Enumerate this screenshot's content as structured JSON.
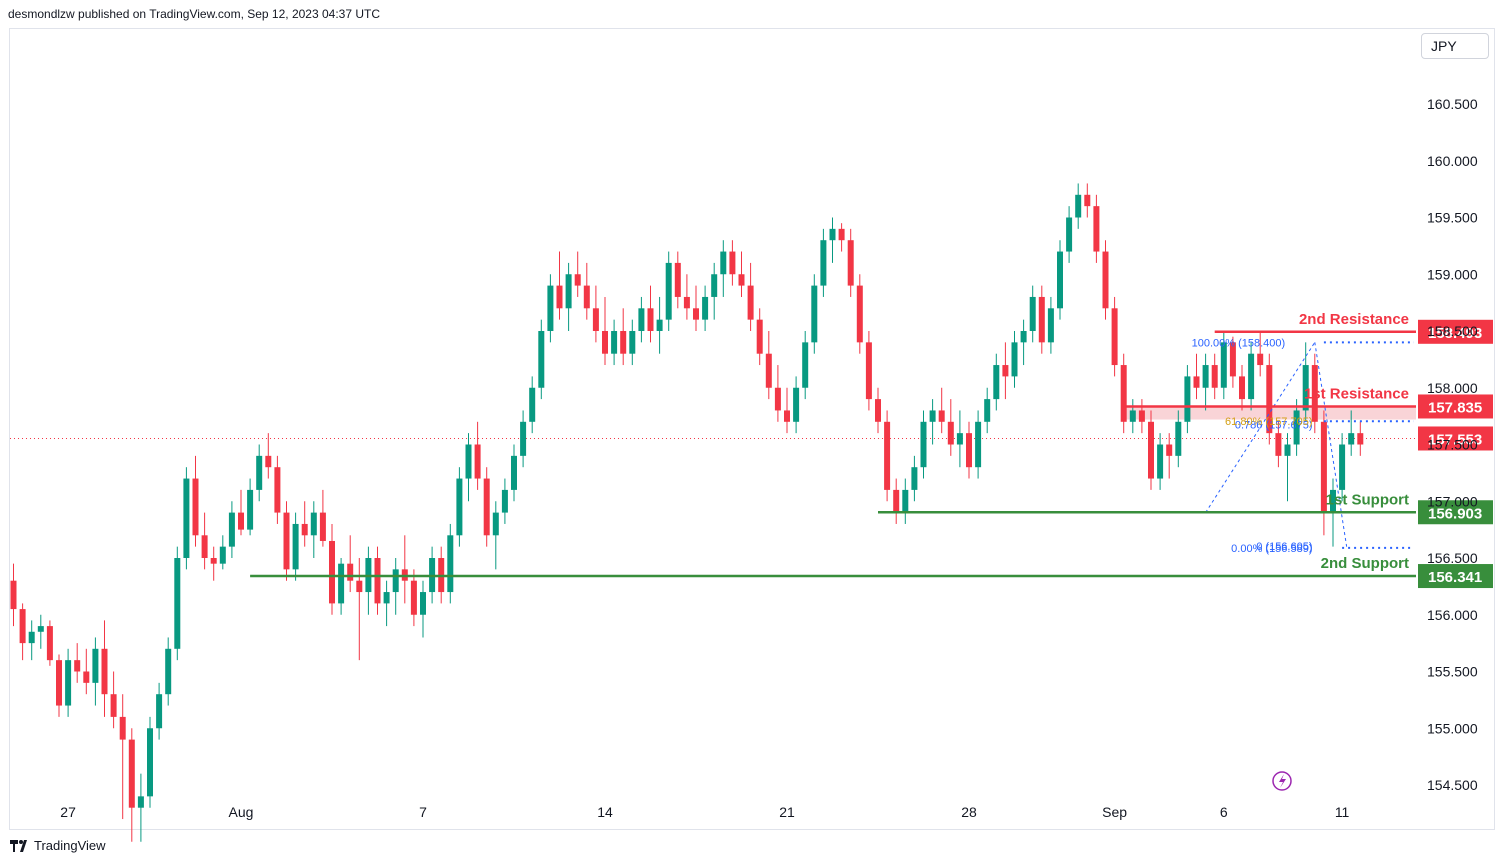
{
  "header": {
    "publisher_line": "desmondlzw published on TradingView.com, Sep 12, 2023 04:37 UTC"
  },
  "currency_button": {
    "label": "JPY"
  },
  "footer": {
    "brand": "TradingView"
  },
  "colors": {
    "up": "#089981",
    "down": "#f23645",
    "resistance": "#f23645",
    "support": "#388e3c",
    "fib": "#2962ff",
    "fib_gold": "#d4a017",
    "price_line": "#f23645"
  },
  "chart_data": {
    "type": "candlestick",
    "title": "",
    "ylim": [
      154.3,
      160.9
    ],
    "y_ticks": [
      160.5,
      160.0,
      159.5,
      159.0,
      158.5,
      158.0,
      157.5,
      157.0,
      156.5,
      156.0,
      155.5,
      155.0,
      154.5
    ],
    "x_ticks": [
      {
        "label": "27",
        "index": 6
      },
      {
        "label": "Aug",
        "index": 25
      },
      {
        "label": "7",
        "index": 45
      },
      {
        "label": "14",
        "index": 65
      },
      {
        "label": "21",
        "index": 85
      },
      {
        "label": "28",
        "index": 105
      },
      {
        "label": "Sep",
        "index": 121
      },
      {
        "label": "6",
        "index": 133
      },
      {
        "label": "11",
        "index": 146
      }
    ],
    "levels": [
      {
        "name": "2nd Resistance",
        "value": 158.493,
        "kind": "resistance",
        "from_index": 132
      },
      {
        "name": "1st Resistance",
        "value": 157.835,
        "kind": "resistance",
        "from_index": 122
      },
      {
        "name": "1st Support",
        "value": 156.903,
        "kind": "support",
        "from_index": 95
      },
      {
        "name": "2nd Support",
        "value": 156.341,
        "kind": "support",
        "from_index": 26
      }
    ],
    "current_price": 157.553,
    "zone": {
      "from": 157.835,
      "to": 157.72
    },
    "fib_labels": [
      {
        "text": "100.00% (158.400)",
        "value": 158.4,
        "index": 137,
        "color": "fib"
      },
      {
        "text": "0.786 (157.675)",
        "value": 157.675,
        "index": 140,
        "color": "fib"
      },
      {
        "text": "61.80% (157.705)",
        "value": 157.705,
        "index": 140,
        "color": "fib_gold"
      },
      {
        "text": "0 (156.605)",
        "value": 156.605,
        "index": 140,
        "color": "fib"
      },
      {
        "text": "0.00% (156.589)",
        "value": 156.589,
        "index": 140,
        "color": "fib"
      }
    ],
    "candles": [
      [
        156.3,
        156.45,
        155.9,
        156.05
      ],
      [
        156.05,
        156.1,
        155.6,
        155.75
      ],
      [
        155.75,
        155.95,
        155.6,
        155.85
      ],
      [
        155.85,
        156.0,
        155.7,
        155.9
      ],
      [
        155.9,
        155.95,
        155.55,
        155.6
      ],
      [
        155.6,
        155.65,
        155.1,
        155.2
      ],
      [
        155.2,
        155.7,
        155.1,
        155.6
      ],
      [
        155.6,
        155.75,
        155.4,
        155.5
      ],
      [
        155.5,
        155.7,
        155.3,
        155.4
      ],
      [
        155.4,
        155.8,
        155.2,
        155.7
      ],
      [
        155.7,
        155.95,
        155.1,
        155.3
      ],
      [
        155.3,
        155.5,
        155.0,
        155.1
      ],
      [
        155.1,
        155.3,
        154.2,
        154.9
      ],
      [
        154.9,
        155.0,
        154.0,
        154.3
      ],
      [
        154.3,
        154.6,
        154.0,
        154.4
      ],
      [
        154.4,
        155.1,
        154.3,
        155.0
      ],
      [
        155.0,
        155.4,
        154.9,
        155.3
      ],
      [
        155.3,
        155.8,
        155.2,
        155.7
      ],
      [
        155.7,
        156.6,
        155.6,
        156.5
      ],
      [
        156.5,
        157.3,
        156.4,
        157.2
      ],
      [
        157.2,
        157.4,
        156.6,
        156.7
      ],
      [
        156.7,
        156.9,
        156.4,
        156.5
      ],
      [
        156.5,
        156.6,
        156.3,
        156.45
      ],
      [
        156.45,
        156.7,
        156.4,
        156.6
      ],
      [
        156.6,
        157.0,
        156.5,
        156.9
      ],
      [
        156.9,
        157.1,
        156.7,
        156.75
      ],
      [
        156.75,
        157.2,
        156.7,
        157.1
      ],
      [
        157.1,
        157.5,
        157.0,
        157.4
      ],
      [
        157.4,
        157.6,
        157.2,
        157.3
      ],
      [
        157.3,
        157.4,
        156.8,
        156.9
      ],
      [
        156.9,
        157.0,
        156.3,
        156.4
      ],
      [
        156.4,
        156.9,
        156.3,
        156.8
      ],
      [
        156.8,
        157.0,
        156.6,
        156.7
      ],
      [
        156.7,
        157.0,
        156.5,
        156.9
      ],
      [
        156.9,
        157.1,
        156.6,
        156.65
      ],
      [
        156.65,
        156.8,
        156.0,
        156.1
      ],
      [
        156.1,
        156.5,
        156.0,
        156.45
      ],
      [
        156.45,
        156.7,
        156.2,
        156.3
      ],
      [
        156.3,
        156.5,
        155.6,
        156.2
      ],
      [
        156.2,
        156.6,
        156.0,
        156.5
      ],
      [
        156.5,
        156.6,
        156.0,
        156.1
      ],
      [
        156.1,
        156.3,
        155.9,
        156.2
      ],
      [
        156.2,
        156.5,
        156.0,
        156.4
      ],
      [
        156.4,
        156.7,
        156.1,
        156.3
      ],
      [
        156.3,
        156.4,
        155.9,
        156.0
      ],
      [
        156.0,
        156.3,
        155.8,
        156.2
      ],
      [
        156.2,
        156.6,
        156.1,
        156.5
      ],
      [
        156.5,
        156.6,
        156.1,
        156.2
      ],
      [
        156.2,
        156.8,
        156.1,
        156.7
      ],
      [
        156.7,
        157.3,
        156.6,
        157.2
      ],
      [
        157.2,
        157.6,
        157.0,
        157.5
      ],
      [
        157.5,
        157.7,
        157.1,
        157.2
      ],
      [
        157.2,
        157.3,
        156.6,
        156.7
      ],
      [
        156.7,
        157.0,
        156.4,
        156.9
      ],
      [
        156.9,
        157.2,
        156.8,
        157.1
      ],
      [
        157.1,
        157.5,
        157.0,
        157.4
      ],
      [
        157.4,
        157.8,
        157.3,
        157.7
      ],
      [
        157.7,
        158.1,
        157.6,
        158.0
      ],
      [
        158.0,
        158.6,
        157.9,
        158.5
      ],
      [
        158.5,
        159.0,
        158.4,
        158.9
      ],
      [
        158.9,
        159.2,
        158.6,
        158.7
      ],
      [
        158.7,
        159.1,
        158.5,
        159.0
      ],
      [
        159.0,
        159.2,
        158.8,
        158.9
      ],
      [
        158.9,
        159.1,
        158.6,
        158.7
      ],
      [
        158.7,
        158.9,
        158.4,
        158.5
      ],
      [
        158.5,
        158.8,
        158.2,
        158.3
      ],
      [
        158.3,
        158.6,
        158.2,
        158.5
      ],
      [
        158.5,
        158.7,
        158.2,
        158.3
      ],
      [
        158.3,
        158.6,
        158.2,
        158.5
      ],
      [
        158.5,
        158.8,
        158.4,
        158.7
      ],
      [
        158.7,
        158.9,
        158.4,
        158.5
      ],
      [
        158.5,
        158.8,
        158.3,
        158.6
      ],
      [
        158.6,
        159.2,
        158.5,
        159.1
      ],
      [
        159.1,
        159.2,
        158.7,
        158.8
      ],
      [
        158.8,
        159.0,
        158.6,
        158.7
      ],
      [
        158.7,
        158.9,
        158.5,
        158.6
      ],
      [
        158.6,
        158.9,
        158.5,
        158.8
      ],
      [
        158.8,
        159.1,
        158.6,
        159.0
      ],
      [
        159.0,
        159.3,
        158.8,
        159.2
      ],
      [
        159.2,
        159.3,
        158.9,
        159.0
      ],
      [
        159.0,
        159.2,
        158.8,
        158.9
      ],
      [
        158.9,
        159.1,
        158.5,
        158.6
      ],
      [
        158.6,
        158.7,
        158.2,
        158.3
      ],
      [
        158.3,
        158.5,
        157.9,
        158.0
      ],
      [
        158.0,
        158.2,
        157.7,
        157.8
      ],
      [
        157.8,
        158.0,
        157.6,
        157.7
      ],
      [
        157.7,
        158.1,
        157.6,
        158.0
      ],
      [
        158.0,
        158.5,
        157.9,
        158.4
      ],
      [
        158.4,
        159.0,
        158.3,
        158.9
      ],
      [
        158.9,
        159.4,
        158.8,
        159.3
      ],
      [
        159.3,
        159.5,
        159.1,
        159.4
      ],
      [
        159.4,
        159.45,
        159.2,
        159.3
      ],
      [
        159.3,
        159.4,
        158.8,
        158.9
      ],
      [
        158.9,
        159.0,
        158.3,
        158.4
      ],
      [
        158.4,
        158.5,
        157.8,
        157.9
      ],
      [
        157.9,
        158.0,
        157.6,
        157.7
      ],
      [
        157.7,
        157.8,
        157.0,
        157.1
      ],
      [
        157.1,
        157.2,
        156.8,
        156.9
      ],
      [
        156.9,
        157.2,
        156.8,
        157.1
      ],
      [
        157.1,
        157.4,
        157.0,
        157.3
      ],
      [
        157.3,
        157.8,
        157.2,
        157.7
      ],
      [
        157.7,
        157.9,
        157.5,
        157.8
      ],
      [
        157.8,
        158.0,
        157.6,
        157.7
      ],
      [
        157.7,
        157.9,
        157.4,
        157.5
      ],
      [
        157.5,
        157.8,
        157.3,
        157.6
      ],
      [
        157.6,
        157.7,
        157.2,
        157.3
      ],
      [
        157.3,
        157.8,
        157.2,
        157.7
      ],
      [
        157.7,
        158.0,
        157.6,
        157.9
      ],
      [
        157.9,
        158.3,
        157.8,
        158.2
      ],
      [
        158.2,
        158.4,
        157.9,
        158.1
      ],
      [
        158.1,
        158.5,
        158.0,
        158.4
      ],
      [
        158.4,
        158.6,
        158.2,
        158.5
      ],
      [
        158.5,
        158.9,
        158.4,
        158.8
      ],
      [
        158.8,
        158.9,
        158.3,
        158.4
      ],
      [
        158.4,
        158.8,
        158.3,
        158.7
      ],
      [
        158.7,
        159.3,
        158.6,
        159.2
      ],
      [
        159.2,
        159.6,
        159.1,
        159.5
      ],
      [
        159.5,
        159.8,
        159.4,
        159.7
      ],
      [
        159.7,
        159.8,
        159.5,
        159.6
      ],
      [
        159.6,
        159.7,
        159.1,
        159.2
      ],
      [
        159.2,
        159.3,
        158.6,
        158.7
      ],
      [
        158.7,
        158.8,
        158.1,
        158.2
      ],
      [
        158.2,
        158.3,
        157.6,
        157.7
      ],
      [
        157.7,
        157.9,
        157.6,
        157.8
      ],
      [
        157.8,
        157.9,
        157.6,
        157.7
      ],
      [
        157.7,
        157.8,
        157.1,
        157.2
      ],
      [
        157.2,
        157.6,
        157.1,
        157.5
      ],
      [
        157.5,
        157.6,
        157.2,
        157.4
      ],
      [
        157.4,
        157.8,
        157.3,
        157.7
      ],
      [
        157.7,
        158.2,
        157.6,
        158.1
      ],
      [
        158.1,
        158.3,
        157.9,
        158.0
      ],
      [
        158.0,
        158.3,
        157.8,
        158.2
      ],
      [
        158.2,
        158.3,
        157.9,
        158.0
      ],
      [
        158.0,
        158.5,
        157.9,
        158.4
      ],
      [
        158.4,
        158.45,
        158.0,
        158.1
      ],
      [
        158.1,
        158.2,
        157.8,
        157.9
      ],
      [
        157.9,
        158.4,
        157.8,
        158.3
      ],
      [
        158.3,
        158.5,
        158.1,
        158.2
      ],
      [
        158.2,
        158.3,
        157.5,
        157.6
      ],
      [
        157.6,
        157.7,
        157.3,
        157.4
      ],
      [
        157.4,
        157.6,
        157.0,
        157.5
      ],
      [
        157.5,
        157.9,
        157.4,
        157.8
      ],
      [
        157.8,
        158.4,
        157.7,
        158.2
      ],
      [
        158.2,
        158.3,
        157.6,
        157.7
      ],
      [
        157.7,
        157.8,
        156.7,
        156.9
      ],
      [
        156.9,
        157.2,
        156.6,
        157.1
      ],
      [
        157.1,
        157.6,
        157.0,
        157.5
      ],
      [
        157.5,
        157.8,
        157.4,
        157.6
      ],
      [
        157.6,
        157.7,
        157.4,
        157.5
      ]
    ]
  }
}
